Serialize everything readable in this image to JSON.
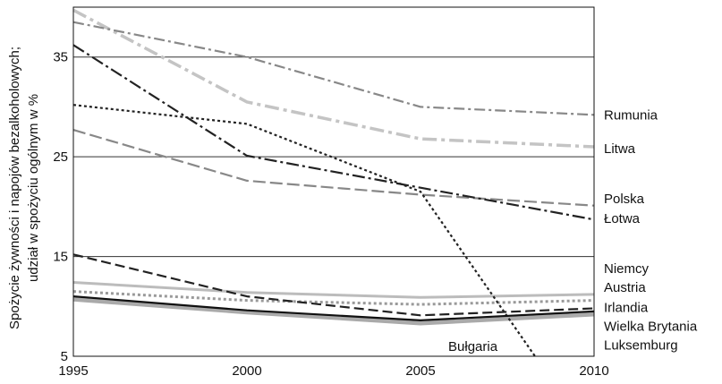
{
  "chart_data": {
    "type": "line",
    "ylabel_lines": [
      "Spożycie żywności i napojów bezalkoholowych;",
      "udział w spożyciu ogólnym w %"
    ],
    "x": [
      1995,
      2000,
      2005,
      2010
    ],
    "x_ticks": [
      "1995",
      "2000",
      "2005",
      "2010"
    ],
    "y_ticks": [
      "5",
      "15",
      "25",
      "35"
    ],
    "xlim": [
      1995,
      2010
    ],
    "ylim": [
      5,
      40
    ],
    "grid": "horizontal",
    "series": [
      {
        "name": "Rumunia",
        "values": [
          38.5,
          35.0,
          30.0,
          29.2
        ],
        "color": "#888888",
        "dash": "12,4,3,4",
        "width": 2.2
      },
      {
        "name": "Litwa",
        "values": [
          39.7,
          30.5,
          26.8,
          26.0
        ],
        "color": "#c4c4c4",
        "dash": "16,5,4,5",
        "width": 3.5
      },
      {
        "name": "Polska",
        "values": [
          27.7,
          22.6,
          21.2,
          20.1
        ],
        "color": "#888888",
        "dash": "14,5",
        "width": 2.2
      },
      {
        "name": "Łotwa",
        "values": [
          36.2,
          25.1,
          21.9,
          18.7
        ],
        "color": "#222222",
        "dash": "14,4,3,4",
        "width": 2.2
      },
      {
        "name": "Bułgaria",
        "values": [
          30.2,
          28.3,
          21.5,
          5.0
        ],
        "x": [
          1995,
          2000,
          2005,
          2008.3
        ],
        "color": "#222222",
        "dash": "3,3",
        "width": 2.2
      },
      {
        "name": "Niemcy",
        "values": [
          15.2,
          11.0,
          9.1,
          9.8
        ],
        "color": "#222222",
        "dash": "11,5",
        "width": 2.2
      },
      {
        "name": "Austria",
        "values": [
          12.4,
          11.4,
          10.9,
          11.2
        ],
        "color": "#bcbcbc",
        "dash": "",
        "width": 3.0
      },
      {
        "name": "Irlandia",
        "values": [
          11.5,
          10.6,
          10.2,
          10.6
        ],
        "color": "#9a9a9a",
        "dash": "3,3",
        "width": 3.0
      },
      {
        "name": "Wielka Brytania",
        "values": [
          11.0,
          9.6,
          8.6,
          9.5
        ],
        "color": "#111111",
        "dash": "",
        "width": 2.2
      },
      {
        "name": "Luksemburg",
        "values": [
          10.7,
          9.4,
          8.3,
          9.2
        ],
        "color": "#aaaaaa",
        "dash": "",
        "width": 4.5
      }
    ],
    "end_labels": [
      {
        "text": "Rumunia",
        "y": 29.2
      },
      {
        "text": "Litwa",
        "y": 25.8
      },
      {
        "text": "Polska",
        "y": 20.8
      },
      {
        "text": "Łotwa",
        "y": 18.8
      },
      {
        "text": "Niemcy",
        "y": 13.8
      },
      {
        "text": "Austria",
        "y": 11.9
      },
      {
        "text": "Irlandia",
        "y": 9.9
      },
      {
        "text": "Wielka Brytania",
        "y": 8.0
      },
      {
        "text": "Luksemburg",
        "y": 6.1
      }
    ],
    "annotations": [
      {
        "text": "Bułgaria",
        "x": 2005.8,
        "y": 6.0
      }
    ]
  }
}
